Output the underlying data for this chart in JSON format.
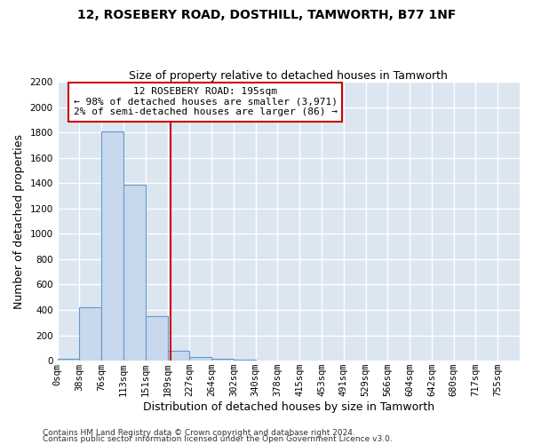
{
  "title": "12, ROSEBERY ROAD, DOSTHILL, TAMWORTH, B77 1NF",
  "subtitle": "Size of property relative to detached houses in Tamworth",
  "xlabel": "Distribution of detached houses by size in Tamworth",
  "ylabel": "Number of detached properties",
  "bar_labels": [
    "0sqm",
    "38sqm",
    "76sqm",
    "113sqm",
    "151sqm",
    "189sqm",
    "227sqm",
    "264sqm",
    "302sqm",
    "340sqm",
    "378sqm",
    "415sqm",
    "453sqm",
    "491sqm",
    "529sqm",
    "566sqm",
    "604sqm",
    "642sqm",
    "680sqm",
    "717sqm",
    "755sqm"
  ],
  "bar_values": [
    15,
    420,
    1810,
    1390,
    350,
    75,
    30,
    15,
    5,
    0,
    0,
    0,
    0,
    0,
    0,
    0,
    0,
    0,
    0,
    0,
    0
  ],
  "bar_color": "#c8d9ee",
  "bar_edgecolor": "#6699cc",
  "vline_x": 5.12,
  "vline_color": "#cc0000",
  "annotation_line1": "12 ROSEBERY ROAD: 195sqm",
  "annotation_line2": "← 98% of detached houses are smaller (3,971)",
  "annotation_line3": "2% of semi-detached houses are larger (86) →",
  "annotation_box_color": "#ffffff",
  "annotation_box_edgecolor": "#cc0000",
  "ylim": [
    0,
    2200
  ],
  "yticks": [
    0,
    200,
    400,
    600,
    800,
    1000,
    1200,
    1400,
    1600,
    1800,
    2000,
    2200
  ],
  "bg_color": "#dce6f0",
  "grid_color": "#ffffff",
  "fig_bg_color": "#ffffff",
  "footer_line1": "Contains HM Land Registry data © Crown copyright and database right 2024.",
  "footer_line2": "Contains public sector information licensed under the Open Government Licence v3.0.",
  "title_fontsize": 10,
  "subtitle_fontsize": 9,
  "axis_label_fontsize": 9,
  "tick_fontsize": 7.5,
  "annotation_fontsize": 8,
  "footer_fontsize": 6.5
}
